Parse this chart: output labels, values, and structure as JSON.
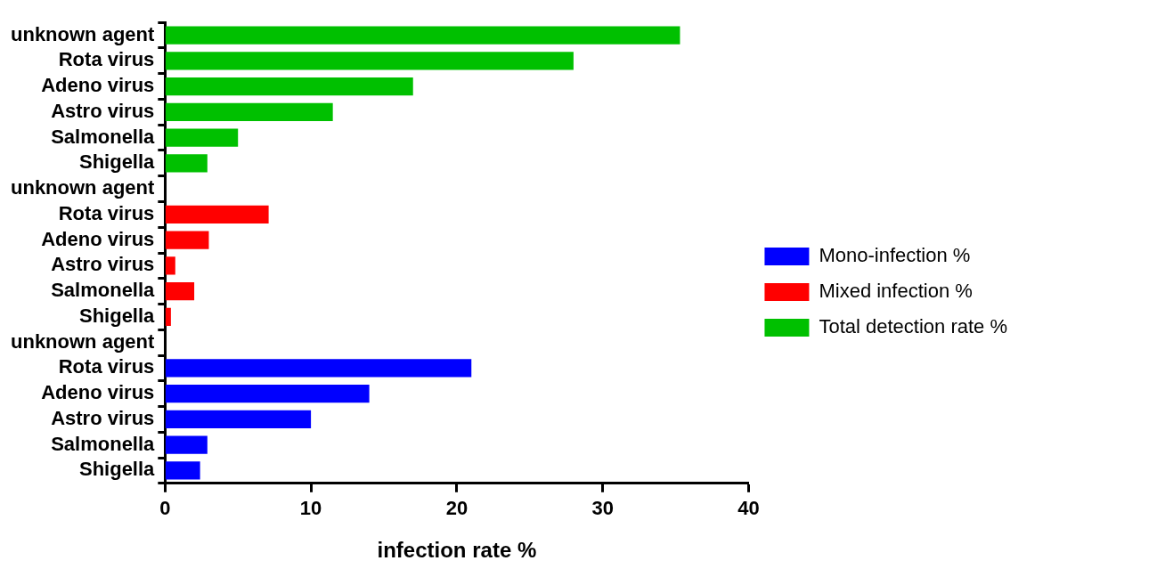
{
  "chart_data": {
    "type": "bar",
    "orientation": "horizontal",
    "xlabel": "infection rate %",
    "categories": [
      "unknown agent",
      "Rota virus",
      "Adeno virus",
      "Astro virus",
      "Salmonella",
      "Shigella",
      "unknown agent",
      "Rota virus",
      "Adeno virus",
      "Astro virus",
      "Salmonella",
      "Shigella",
      "unknown agent",
      "Rota virus",
      "Adeno virus",
      "Astro virus",
      "Salmonella",
      "Shigella"
    ],
    "series": [
      {
        "name": "Mono-infection %",
        "color": "#0000ff",
        "values": [
          null,
          null,
          null,
          null,
          null,
          null,
          null,
          null,
          null,
          null,
          null,
          null,
          0,
          21,
          14,
          10,
          2.9,
          2.4
        ]
      },
      {
        "name": "Mixed infection %",
        "color": "#ff0000",
        "values": [
          null,
          null,
          null,
          null,
          null,
          null,
          0,
          7.1,
          3.0,
          0.7,
          2.0,
          0.4,
          null,
          null,
          null,
          null,
          null,
          null
        ]
      },
      {
        "name": "Total detection rate %",
        "color": "#00c000",
        "values": [
          35.3,
          28.0,
          17.0,
          11.5,
          5.0,
          2.9,
          null,
          null,
          null,
          null,
          null,
          null,
          null,
          null,
          null,
          null,
          null,
          null
        ]
      }
    ],
    "xlim": [
      0,
      40
    ],
    "xticks": [
      0,
      10,
      20,
      30,
      40
    ],
    "grid": false,
    "legend": "right"
  }
}
